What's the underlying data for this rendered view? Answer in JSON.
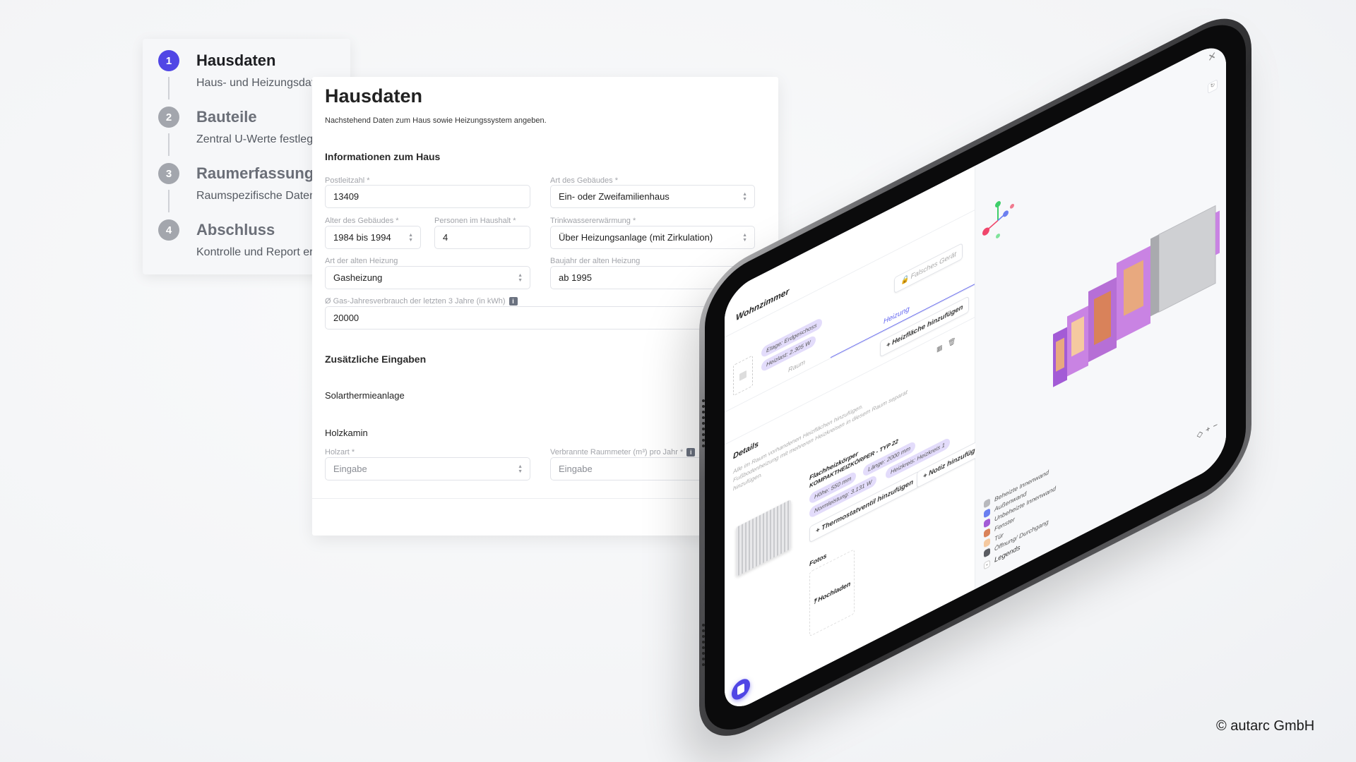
{
  "stepper": {
    "steps": [
      {
        "num": "1",
        "title": "Hausdaten",
        "subtitle": "Haus- und Heizungsdaten"
      },
      {
        "num": "2",
        "title": "Bauteile",
        "subtitle": "Zentral U-Werte festlegen"
      },
      {
        "num": "3",
        "title": "Raumerfassung",
        "subtitle": "Raumspezifische Daten"
      },
      {
        "num": "4",
        "title": "Abschluss",
        "subtitle": "Kontrolle und Report erstellen"
      }
    ],
    "active_color": "#5046e5"
  },
  "form": {
    "title": "Hausdaten",
    "subtitle": "Nachstehend Daten zum Haus sowie Heizungssystem angeben.",
    "section_house": "Informationen zum Haus",
    "postleitzahl": {
      "label": "Postleitzahl *",
      "value": "13409"
    },
    "gebaeudeart": {
      "label": "Art des Gebäudes *",
      "value": "Ein- oder Zweifamilienhaus"
    },
    "alter": {
      "label": "Alter des Gebäudes *",
      "value": "1984 bis 1994"
    },
    "personen": {
      "label": "Personen im Haushalt *",
      "value": "4"
    },
    "trinkwasser": {
      "label": "Trinkwassererwärmung *",
      "value": "Über Heizungsanlage (mit Zirkulation)"
    },
    "heizungsart": {
      "label": "Art der alten Heizung",
      "value": "Gasheizung"
    },
    "baujahr": {
      "label": "Baujahr der alten Heizung",
      "value": "ab 1995"
    },
    "gasverbrauch": {
      "label": "Ø Gas-Jahresverbrauch der letzten 3 Jahre (in kWh)",
      "value": "20000"
    },
    "section_extra": "Zusätzliche Eingaben",
    "solar": "Solarthermieanlage",
    "holzkamin": "Holzkamin",
    "holzart": {
      "label": "Holzart *",
      "placeholder": "Eingabe"
    },
    "raummeter": {
      "label": "Verbrannte Raummeter (m³) pro Jahr *",
      "placeholder": "Eingabe"
    }
  },
  "tablet": {
    "room_title": "Wohnzimmer",
    "wrong_device": "Falsches Gerät",
    "room_chips": [
      "Etage: Erdgeschoss",
      "Heizlast: 2.305 W"
    ],
    "tabs": [
      "Raum",
      "Heizung"
    ],
    "active_tab": "Heizung",
    "add_heating_surface": "+ Heizfläche hinzufügen",
    "details_title": "Details",
    "details_text": [
      "Alle im Raum vorhandenen Heizflächen hinzufügen.",
      "Fußbodenheizung mit mehreren Heizkreisen in diesem Raum separat",
      "hinzufügen."
    ],
    "radiator": {
      "name": "Flachheizkörper",
      "type": "KOMPAKTHEIZKÖRPER - TYP 22",
      "chips": [
        "Höhe: 550 mm",
        "Länge: 2000 mm",
        "Normleistung: 3.131 W",
        "Heizkreis: Heizkreis 1"
      ]
    },
    "add_thermostat": "+ Thermostatventil hinzufügen",
    "add_note": "+ Notiz hinzufügen",
    "photos_title": "Fotos",
    "upload": "Hochladen",
    "legend": {
      "items": [
        {
          "label": "Beheizte Innenwand",
          "color": "#b8b9bd"
        },
        {
          "label": "Außenwand",
          "color": "#6b7ff0"
        },
        {
          "label": "Unbeheizte Innenwand",
          "color": "#a35bd6"
        },
        {
          "label": "Fenster",
          "color": "#d9825a"
        },
        {
          "label": "Tür",
          "color": "#f5c9a0"
        },
        {
          "label": "Öffnung/ Durchgang",
          "color": "#5b5d63"
        }
      ],
      "toggle_label": "Legends"
    },
    "zoom_in": "+",
    "zoom_out": "−",
    "accent": "#6366f1"
  },
  "copyright": "© autarc GmbH"
}
